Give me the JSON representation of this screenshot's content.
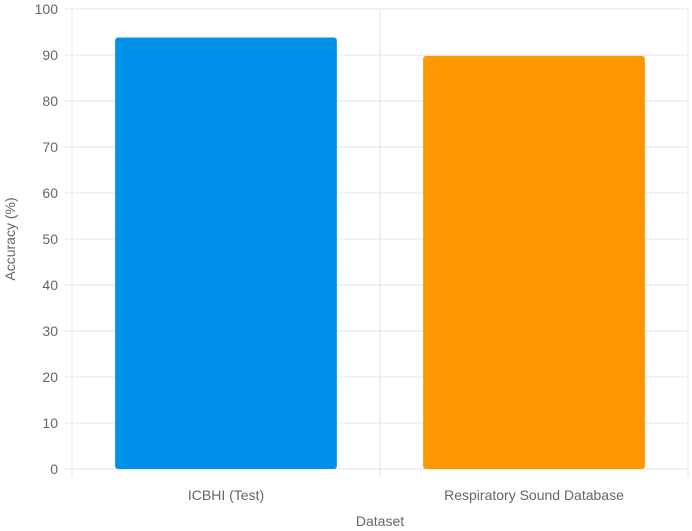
{
  "chart_data": {
    "type": "bar",
    "categories": [
      "ICBHI (Test)",
      "Respiratory Sound Database"
    ],
    "values": [
      93.8,
      89.8
    ],
    "colors": [
      "#0091EA",
      "#FF9800"
    ],
    "xlabel": "Dataset",
    "ylabel": "Accuracy (%)",
    "ylim": [
      0,
      100
    ],
    "yticks": [
      "0",
      "10",
      "20",
      "30",
      "40",
      "50",
      "60",
      "70",
      "80",
      "90",
      "100"
    ],
    "grid": true,
    "legend": "none"
  }
}
